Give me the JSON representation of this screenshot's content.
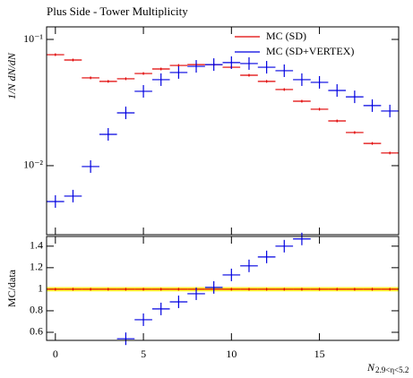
{
  "chart_data": [
    {
      "type": "errorbar",
      "title": "Plus Side - Tower Multiplicity",
      "y_label": "1/N dN/dN",
      "log_scale": true,
      "legend": "upper right",
      "x": [
        0,
        1,
        2,
        3,
        4,
        5,
        6,
        7,
        8,
        9,
        10,
        11,
        12,
        13,
        14,
        15,
        16,
        17,
        18,
        19
      ],
      "xlim": [
        -0.5,
        19.5
      ],
      "xticks": [
        0,
        5,
        10,
        15
      ],
      "ylim": [
        0.00284,
        0.1257
      ],
      "yticks": [
        {
          "value": 0.01,
          "label": "10⁻²"
        },
        {
          "value": 0.1,
          "label": "10⁻¹"
        }
      ],
      "series": [
        {
          "name": "MC (SD)",
          "color": "#e00000",
          "values": [
            0.0757,
            0.0687,
            0.0496,
            0.0465,
            0.0488,
            0.0537,
            0.0583,
            0.0622,
            0.0632,
            0.0632,
            0.0602,
            0.052,
            0.0465,
            0.0401,
            0.0324,
            0.028,
            0.0226,
            0.0183,
            0.015,
            0.0126
          ]
        },
        {
          "name": "MC (SD+VERTEX)",
          "color": "#0000e0",
          "values": [
            0.0052,
            0.00574,
            0.00984,
            0.0177,
            0.0262,
            0.0388,
            0.048,
            0.0547,
            0.0612,
            0.0632,
            0.0655,
            0.0644,
            0.0602,
            0.0565,
            0.048,
            0.0457,
            0.0394,
            0.0351,
            0.0299,
            0.0271
          ]
        }
      ]
    },
    {
      "type": "ratio",
      "y_label": "MC/data",
      "x_label": "N",
      "x_label_subscript": "2.9<η<5.2",
      "x": [
        0,
        1,
        2,
        3,
        4,
        5,
        6,
        7,
        8,
        9,
        10,
        11,
        12,
        13,
        14,
        15,
        16,
        17,
        18,
        19
      ],
      "xlim": [
        -0.5,
        19.5
      ],
      "xticks": [
        0,
        5,
        10,
        15
      ],
      "ylim": [
        0.525,
        1.49
      ],
      "yticks": [
        0.6,
        0.8,
        1,
        1.2,
        1.4
      ],
      "band_color": "#ffff00",
      "band_halfwidth": 0.02,
      "series": [
        {
          "color": "#e00000",
          "values": [
            1,
            1,
            1,
            1,
            1,
            1,
            1,
            1,
            1,
            1,
            1,
            1,
            1,
            1,
            1,
            1,
            1,
            1,
            1,
            1
          ]
        },
        {
          "color": "#0000e0",
          "values": [
            null,
            null,
            null,
            null,
            0.54,
            0.717,
            0.817,
            0.883,
            0.958,
            1.017,
            1.133,
            1.217,
            1.3,
            1.4,
            1.467,
            null,
            null,
            null,
            null,
            null
          ]
        }
      ]
    }
  ]
}
